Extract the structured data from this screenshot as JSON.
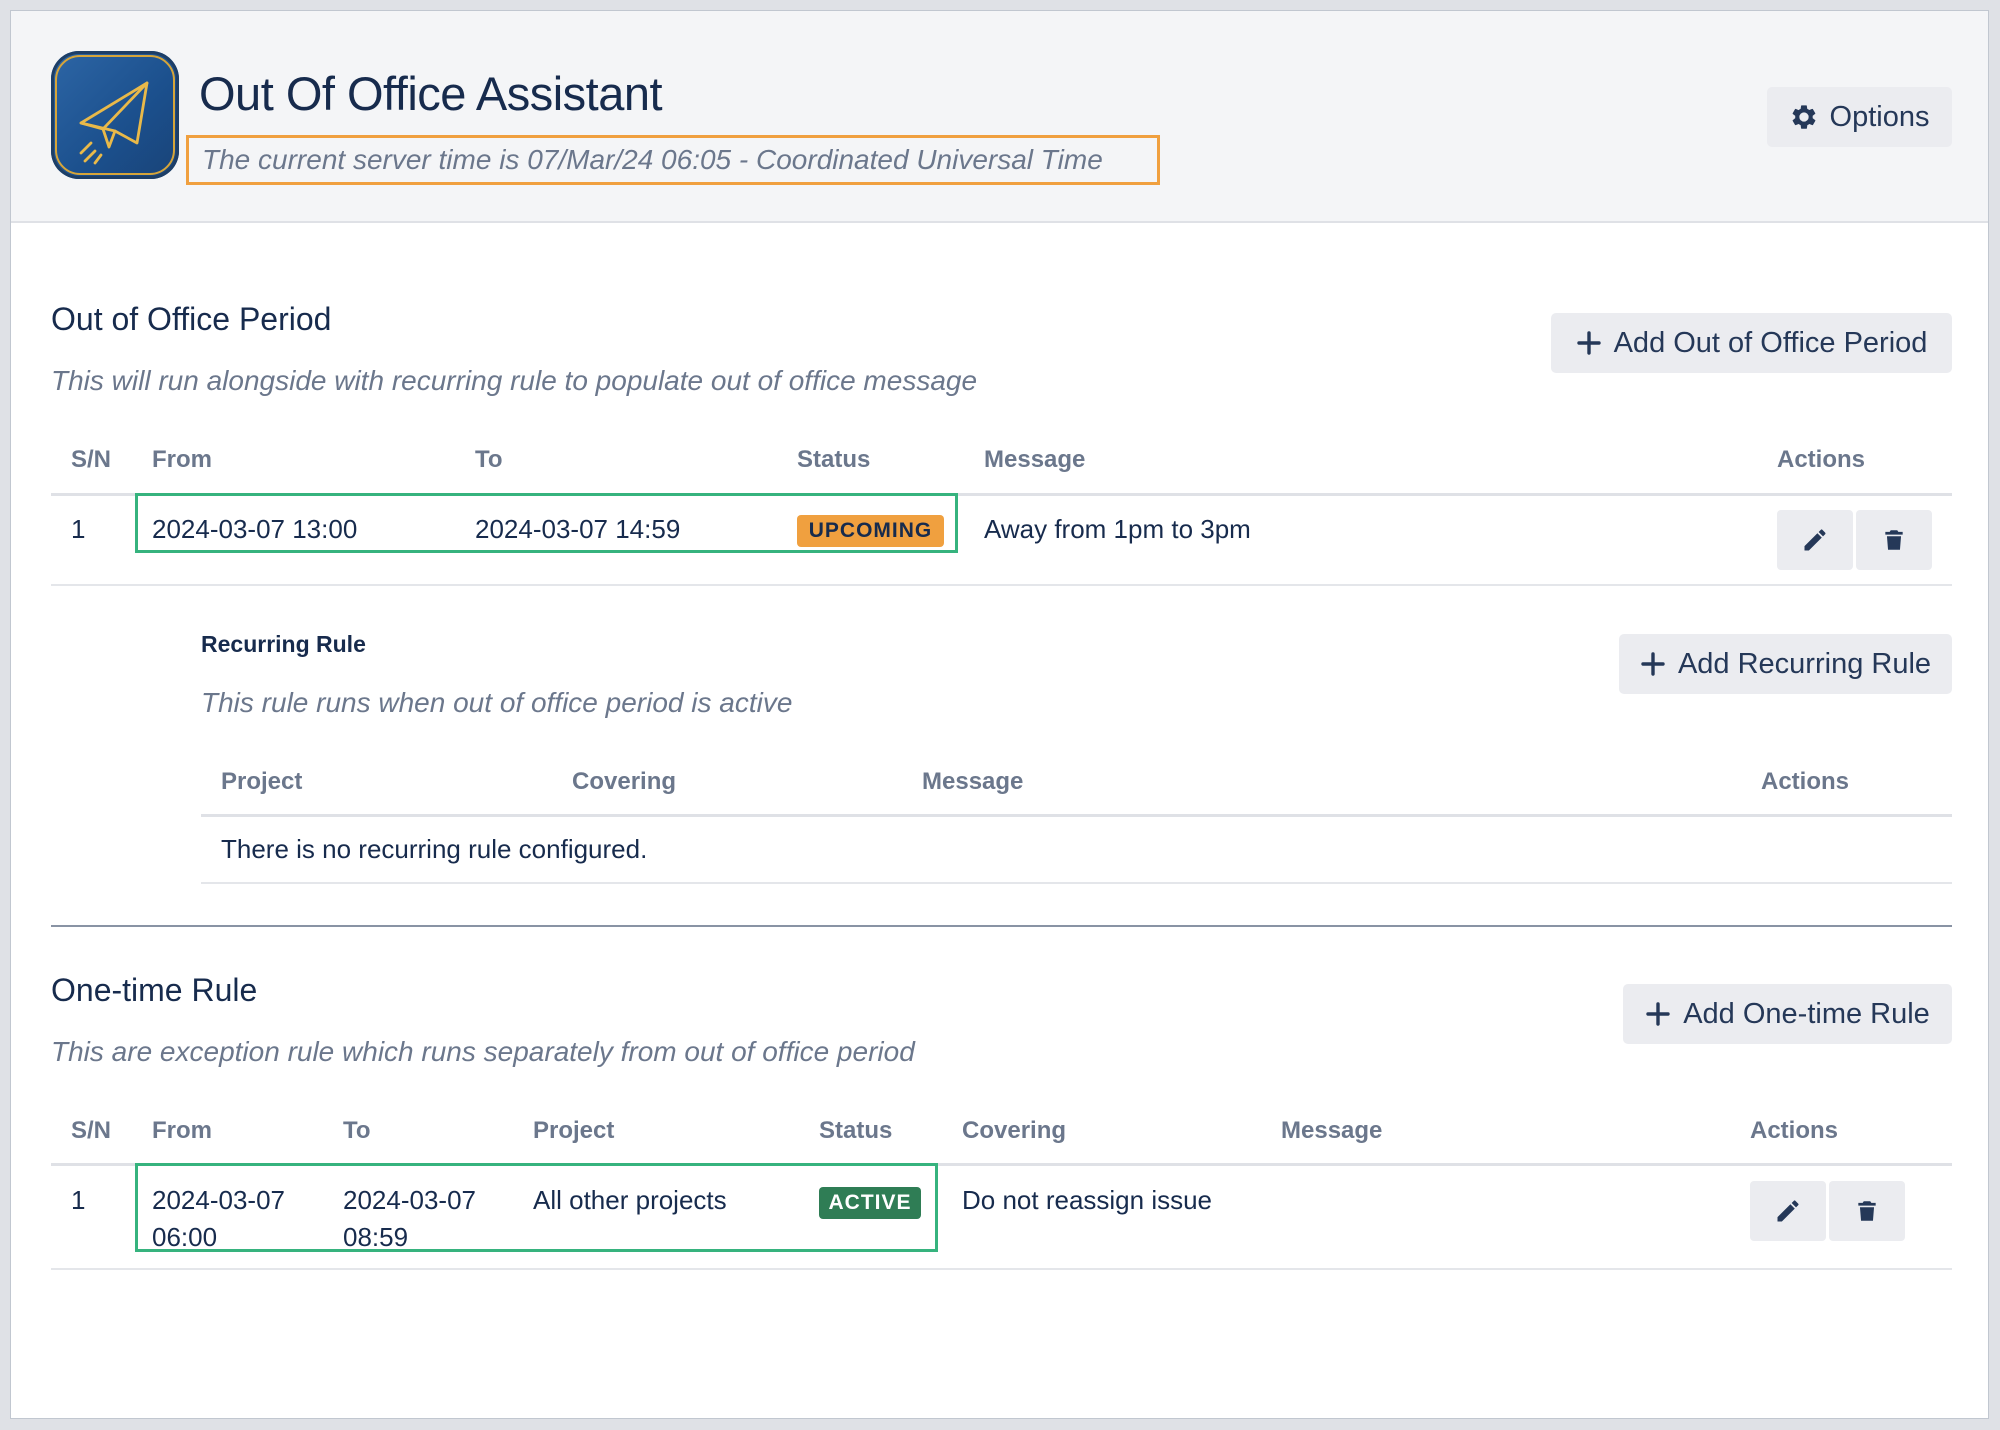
{
  "header": {
    "title": "Out Of Office Assistant",
    "server_time": "The current server time is 07/Mar/24 06:05 - Coordinated Universal Time",
    "options_label": "Options"
  },
  "ooo_period": {
    "title": "Out of Office Period",
    "description": "This will run alongside with recurring rule to populate out of office message",
    "add_label": "Add Out of Office Period",
    "columns": [
      "S/N",
      "From",
      "To",
      "Status",
      "Message",
      "Actions"
    ],
    "rows": [
      {
        "sn": "1",
        "from": "2024-03-07 13:00",
        "to": "2024-03-07 14:59",
        "status": "UPCOMING",
        "message": "Away from 1pm to 3pm"
      }
    ]
  },
  "recurring_rule": {
    "title": "Recurring Rule",
    "description": "This rule runs when out of office period is active",
    "add_label": "Add Recurring Rule",
    "columns": [
      "Project",
      "Covering",
      "Message",
      "Actions"
    ],
    "empty_message": "There is no recurring rule configured."
  },
  "one_time_rule": {
    "title": "One-time Rule",
    "description": "This are exception rule which runs separately from out of office period",
    "add_label": "Add One-time Rule",
    "columns": [
      "S/N",
      "From",
      "To",
      "Project",
      "Status",
      "Covering",
      "Message",
      "Actions"
    ],
    "rows": [
      {
        "sn": "1",
        "from_date": "2024-03-07",
        "from_time": "06:00",
        "to_date": "2024-03-07",
        "to_time": "08:59",
        "project": "All other projects",
        "status": "ACTIVE",
        "covering": "Do not reassign issue",
        "message": ""
      }
    ]
  },
  "colors": {
    "upcoming_bg": "#f0a03f",
    "active_bg": "#2f7d55",
    "highlight_green": "#36b37e",
    "highlight_orange": "#f0a03f"
  },
  "icons": {
    "logo": "paper-plane-icon",
    "options": "gear-icon",
    "add": "plus-icon",
    "edit": "pencil-icon",
    "delete": "trash-icon"
  }
}
